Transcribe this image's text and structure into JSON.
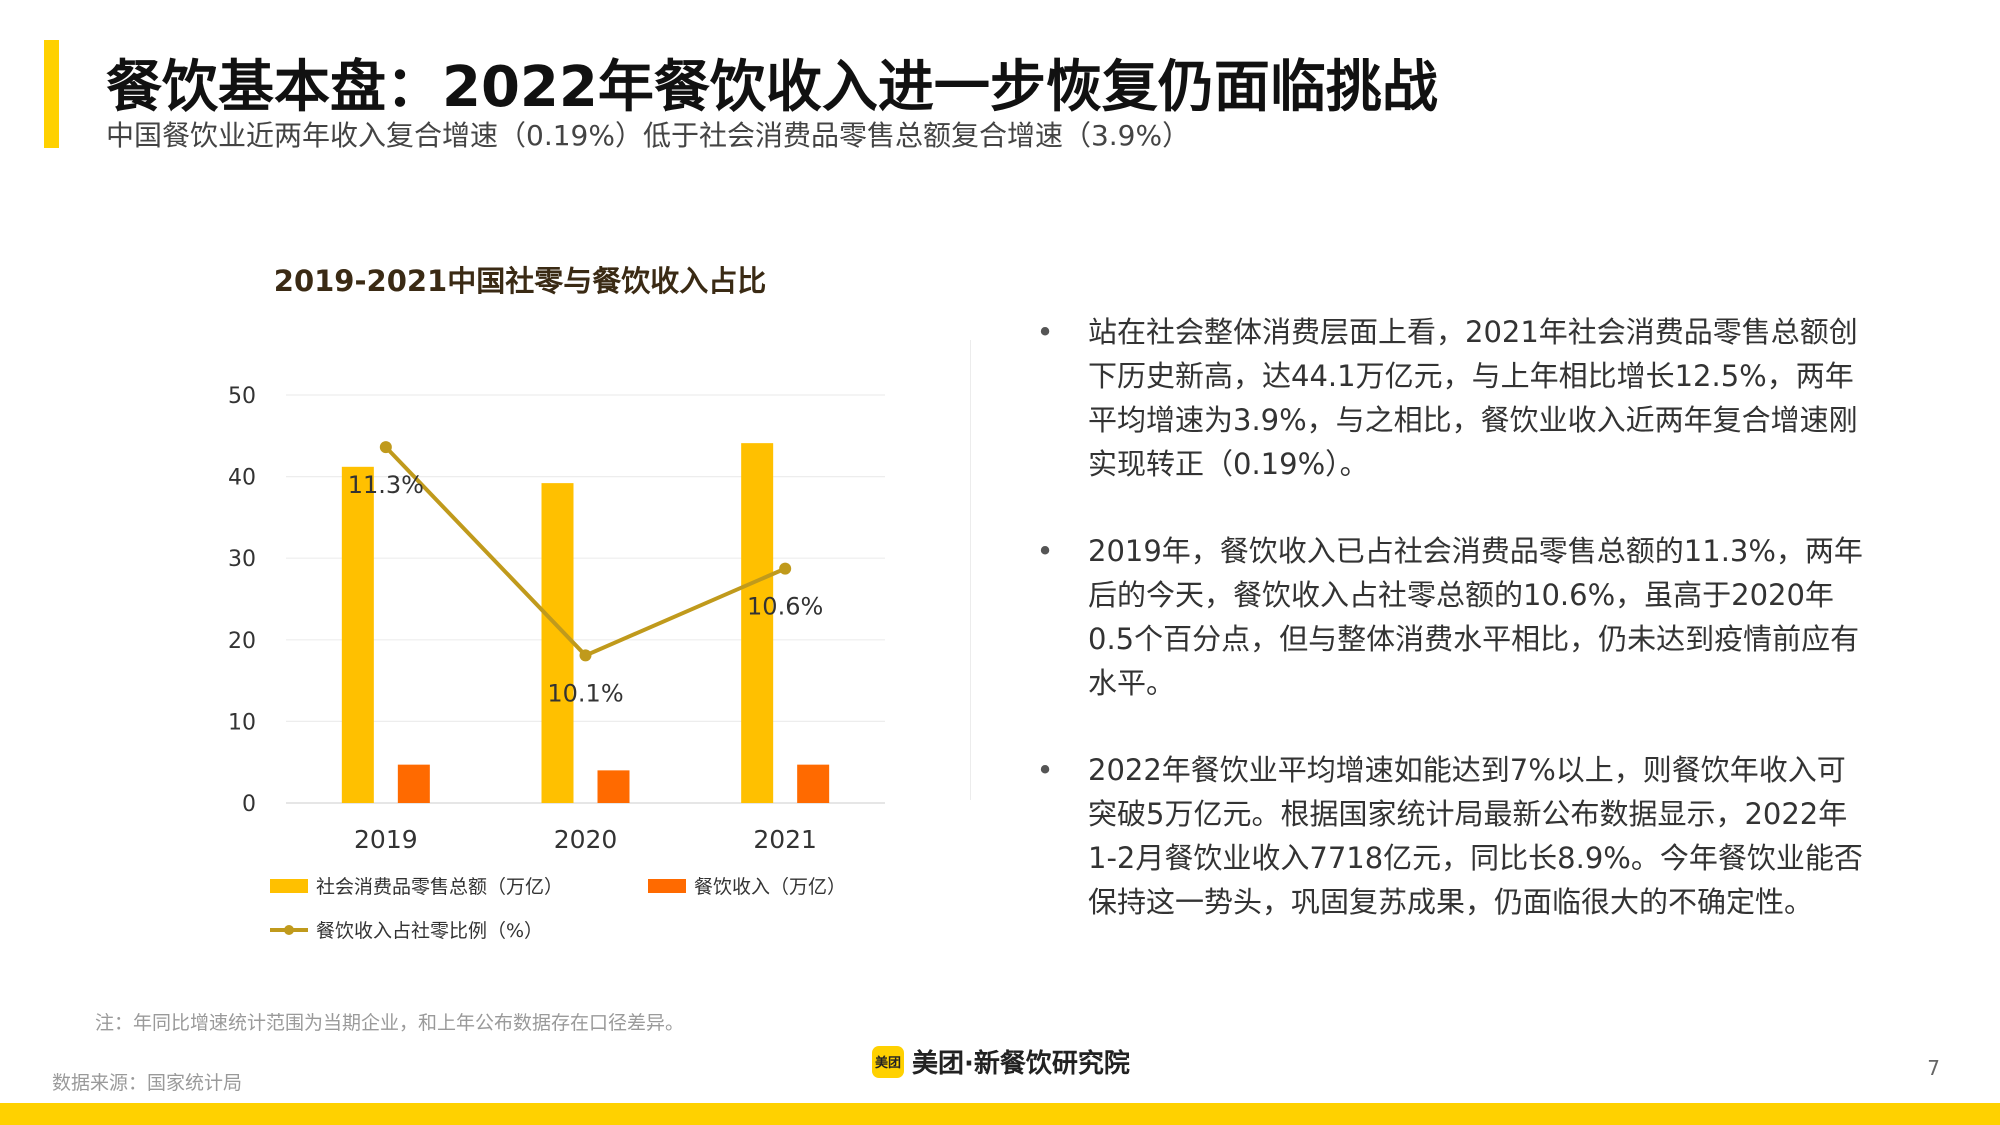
{
  "title": "餐饮基本盘：2022年餐饮收入进一步恢复仍面临挑战",
  "subtitle": "中国餐饮业近两年收入复合增速（0.19%）低于社会消费品零售总额复合增速（3.9%）",
  "chart_data": {
    "type": "bar",
    "title": "2019-2021中国社零与餐饮收入占比",
    "categories": [
      "2019",
      "2020",
      "2021"
    ],
    "series": [
      {
        "name": "社会消费品零售总额（万亿）",
        "type": "bar",
        "color": "#FFC000",
        "values": [
          41.2,
          39.2,
          44.1
        ]
      },
      {
        "name": "餐饮收入（万亿）",
        "type": "bar",
        "color": "#FF6A00",
        "values": [
          4.7,
          4.0,
          4.7
        ]
      },
      {
        "name": "餐饮收入占社零比例（%）",
        "type": "line",
        "color": "#C09A1C",
        "values": [
          11.3,
          10.1,
          10.6
        ],
        "labels": [
          "11.3%",
          "10.1%",
          "10.6%"
        ]
      }
    ],
    "ylim": [
      0,
      50
    ],
    "yticks": [
      0,
      10,
      20,
      30,
      40,
      50
    ],
    "line_ylim": [
      9.25,
      11.6
    ],
    "grid": true,
    "legend": "bottom"
  },
  "bullets": [
    {
      "text": "站在社会整体消费层面上看，2021年社会消费品零售总额创下历史新高，达44.1万亿元，与上年相比增长12.5%，两年平均增速为3.9%，与之相比，餐饮业收入近两年复合增速刚实现转正（0.19%）。"
    },
    {
      "text": "2019年，餐饮收入已占社会消费品零售总额的11.3%，两年后的今天，餐饮收入占社零总额的10.6%，虽高于2020年0.5个百分点，但与整体消费水平相比，仍未达到疫情前应有水平。"
    },
    {
      "text": "2022年餐饮业平均增速如能达到7%以上，则餐饮年收入可突破5万亿元。根据国家统计局最新公布数据显示，2022年1-2月餐饮业收入7718亿元，同比长8.9%。今年餐饮业能否保持这一势头，巩固复苏成果，仍面临很大的不确定性。"
    }
  ],
  "bullet_symbol": "•",
  "note": "注：年同比增速统计范围为当期企业，和上年公布数据存在口径差异。",
  "source": "数据来源：国家统计局",
  "logo": {
    "mark": "美团",
    "text": "美团·新餐饮研究院"
  },
  "page_number": "7",
  "colors": {
    "accent": "#FFD100",
    "bar_primary": "#FFC000",
    "bar_secondary": "#FF6A00",
    "line": "#C09A1C"
  }
}
